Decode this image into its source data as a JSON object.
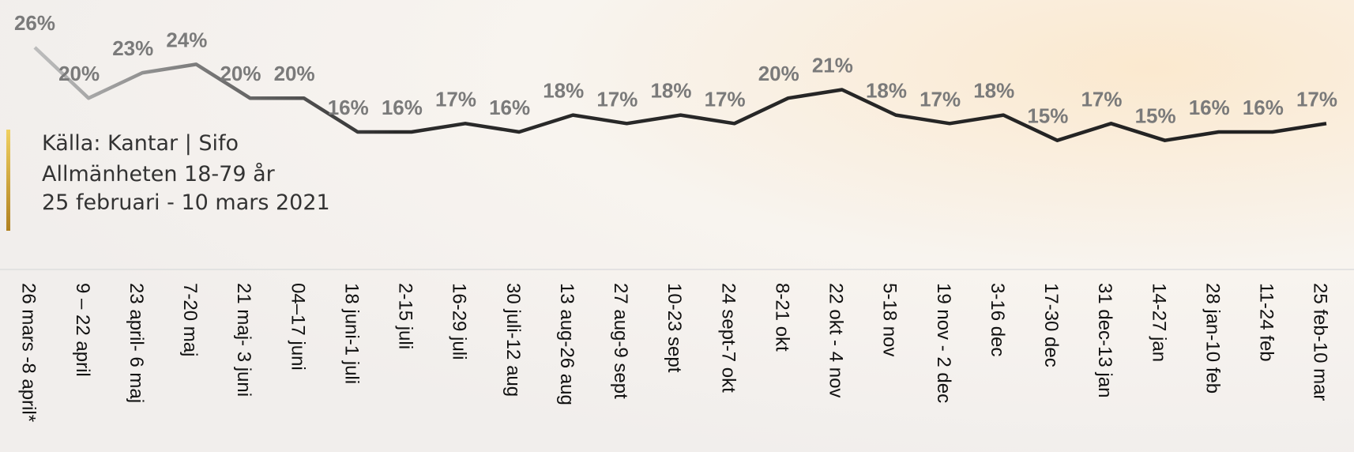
{
  "chart_data": {
    "type": "line",
    "notes": [
      "Källa: Kantar | Sifo",
      "Allmänheten 18-79 år",
      "25 februari - 10 mars 2021"
    ],
    "categories": [
      "26 mars -8 april*",
      "9 – 22 april",
      "23 april- 6 maj",
      "7-20 maj",
      "21 maj- 3 juni",
      "04–17 juni",
      "18 juni-1 juli",
      "2-15 juli",
      "16-29 juli",
      "30 juli-12 aug",
      "13 aug-26 aug",
      "27 aug-9 sept",
      "10-23 sept",
      "24 sept-7 okt",
      "8-21 okt",
      "22 okt - 4 nov",
      "5-18 nov",
      "19 nov - 2 dec",
      "3-16 dec",
      "17-30 dec",
      "31 dec-13 jan",
      "14-27 jan",
      "28 jan-10 feb",
      "11-24 feb",
      "25 feb-10 mar"
    ],
    "values": [
      26,
      20,
      23,
      24,
      20,
      20,
      16,
      16,
      17,
      16,
      18,
      17,
      18,
      17,
      20,
      21,
      18,
      17,
      18,
      15,
      17,
      15,
      16,
      16,
      17
    ],
    "value_labels": [
      "26%",
      "20%",
      "23%",
      "24%",
      "20%",
      "20%",
      "16%",
      "16%",
      "17%",
      "16%",
      "18%",
      "17%",
      "18%",
      "17%",
      "20%",
      "21%",
      "18%",
      "17%",
      "18%",
      "15%",
      "17%",
      "15%",
      "16%",
      "16%",
      "17%"
    ],
    "color": "#222222"
  }
}
